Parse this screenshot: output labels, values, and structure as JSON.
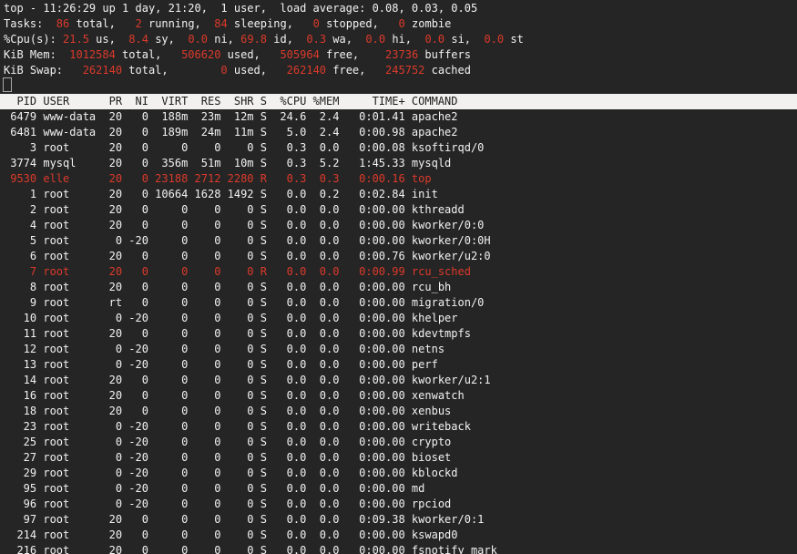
{
  "colors": {
    "background": "#252525",
    "foreground": "#f2f2f2",
    "highlight_red": "#db3a2b",
    "header_bar_background": "#f2f1ef",
    "header_bar_foreground": "#1c1c1c"
  },
  "terminal": {
    "summary_lines": [
      {
        "segments": [
          {
            "text": "top - 11:26:29 up 1 day, 21:20,  1 user,  load average: 0.08, 0.03, 0.05",
            "color": "fg"
          }
        ]
      },
      {
        "segments": [
          {
            "text": "Tasks: ",
            "color": "fg"
          },
          {
            "text": " 86",
            "color": "red"
          },
          {
            "text": " total, ",
            "color": "fg"
          },
          {
            "text": "  2",
            "color": "red"
          },
          {
            "text": " running, ",
            "color": "fg"
          },
          {
            "text": " 84",
            "color": "red"
          },
          {
            "text": " sleeping, ",
            "color": "fg"
          },
          {
            "text": "  0",
            "color": "red"
          },
          {
            "text": " stopped, ",
            "color": "fg"
          },
          {
            "text": "  0",
            "color": "red"
          },
          {
            "text": " zombie",
            "color": "fg"
          }
        ]
      },
      {
        "segments": [
          {
            "text": "%Cpu(s): ",
            "color": "fg"
          },
          {
            "text": "21.5",
            "color": "red"
          },
          {
            "text": " us, ",
            "color": "fg"
          },
          {
            "text": " 8.4",
            "color": "red"
          },
          {
            "text": " sy, ",
            "color": "fg"
          },
          {
            "text": " 0.0",
            "color": "red"
          },
          {
            "text": " ni, ",
            "color": "fg"
          },
          {
            "text": "69.8",
            "color": "red"
          },
          {
            "text": " id, ",
            "color": "fg"
          },
          {
            "text": " 0.3",
            "color": "red"
          },
          {
            "text": " wa, ",
            "color": "fg"
          },
          {
            "text": " 0.0",
            "color": "red"
          },
          {
            "text": " hi, ",
            "color": "fg"
          },
          {
            "text": " 0.0",
            "color": "red"
          },
          {
            "text": " si, ",
            "color": "fg"
          },
          {
            "text": " 0.0",
            "color": "red"
          },
          {
            "text": " st",
            "color": "fg"
          }
        ]
      },
      {
        "segments": [
          {
            "text": "KiB Mem: ",
            "color": "fg"
          },
          {
            "text": " 1012584",
            "color": "red"
          },
          {
            "text": " total, ",
            "color": "fg"
          },
          {
            "text": "  506620",
            "color": "red"
          },
          {
            "text": " used, ",
            "color": "fg"
          },
          {
            "text": "  505964",
            "color": "red"
          },
          {
            "text": " free, ",
            "color": "fg"
          },
          {
            "text": "   23736",
            "color": "red"
          },
          {
            "text": " buffers",
            "color": "fg"
          }
        ]
      },
      {
        "segments": [
          {
            "text": "KiB Swap: ",
            "color": "fg"
          },
          {
            "text": "  262140",
            "color": "red"
          },
          {
            "text": " total, ",
            "color": "fg"
          },
          {
            "text": "       0",
            "color": "red"
          },
          {
            "text": " used, ",
            "color": "fg"
          },
          {
            "text": "  262140",
            "color": "red"
          },
          {
            "text": " free, ",
            "color": "fg"
          },
          {
            "text": "  245752",
            "color": "red"
          },
          {
            "text": " cached",
            "color": "fg"
          }
        ]
      }
    ],
    "cursor": "outline-block",
    "table": {
      "columns": [
        {
          "key": "pid",
          "width": 5,
          "align": "right"
        },
        {
          "key": "user",
          "width": 8,
          "align": "left"
        },
        {
          "key": "pr",
          "width": 3,
          "align": "right"
        },
        {
          "key": "ni",
          "width": 3,
          "align": "right"
        },
        {
          "key": "virt",
          "width": 5,
          "align": "right"
        },
        {
          "key": "res",
          "width": 4,
          "align": "right"
        },
        {
          "key": "shr",
          "width": 4,
          "align": "right"
        },
        {
          "key": "s",
          "width": 1,
          "align": "left"
        },
        {
          "key": "cpu",
          "width": 5,
          "align": "right"
        },
        {
          "key": "mem",
          "width": 4,
          "align": "right"
        },
        {
          "key": "time",
          "width": 9,
          "align": "right"
        },
        {
          "key": "command",
          "width": 0,
          "align": "left"
        }
      ],
      "header": {
        "pid": "PID",
        "user": "USER",
        "pr": "PR",
        "ni": "NI",
        "virt": "VIRT",
        "res": "RES",
        "shr": "SHR",
        "s": "S",
        "cpu": "%CPU",
        "mem": "%MEM",
        "time": "TIME+",
        "command": "COMMAND"
      },
      "rows": [
        {
          "pid": "6479",
          "user": "www-data",
          "pr": "20",
          "ni": "0",
          "virt": "188m",
          "res": "23m",
          "shr": "12m",
          "s": "S",
          "cpu": "24.6",
          "mem": "2.4",
          "time": "0:01.41",
          "command": "apache2",
          "highlight": false
        },
        {
          "pid": "6481",
          "user": "www-data",
          "pr": "20",
          "ni": "0",
          "virt": "189m",
          "res": "24m",
          "shr": "11m",
          "s": "S",
          "cpu": "5.0",
          "mem": "2.4",
          "time": "0:00.98",
          "command": "apache2",
          "highlight": false
        },
        {
          "pid": "3",
          "user": "root",
          "pr": "20",
          "ni": "0",
          "virt": "0",
          "res": "0",
          "shr": "0",
          "s": "S",
          "cpu": "0.3",
          "mem": "0.0",
          "time": "0:00.08",
          "command": "ksoftirqd/0",
          "highlight": false
        },
        {
          "pid": "3774",
          "user": "mysql",
          "pr": "20",
          "ni": "0",
          "virt": "356m",
          "res": "51m",
          "shr": "10m",
          "s": "S",
          "cpu": "0.3",
          "mem": "5.2",
          "time": "1:45.33",
          "command": "mysqld",
          "highlight": false
        },
        {
          "pid": "9530",
          "user": "elle",
          "pr": "20",
          "ni": "0",
          "virt": "23188",
          "res": "2712",
          "shr": "2280",
          "s": "R",
          "cpu": "0.3",
          "mem": "0.3",
          "time": "0:00.16",
          "command": "top",
          "highlight": true
        },
        {
          "pid": "1",
          "user": "root",
          "pr": "20",
          "ni": "0",
          "virt": "10664",
          "res": "1628",
          "shr": "1492",
          "s": "S",
          "cpu": "0.0",
          "mem": "0.2",
          "time": "0:02.84",
          "command": "init",
          "highlight": false
        },
        {
          "pid": "2",
          "user": "root",
          "pr": "20",
          "ni": "0",
          "virt": "0",
          "res": "0",
          "shr": "0",
          "s": "S",
          "cpu": "0.0",
          "mem": "0.0",
          "time": "0:00.00",
          "command": "kthreadd",
          "highlight": false
        },
        {
          "pid": "4",
          "user": "root",
          "pr": "20",
          "ni": "0",
          "virt": "0",
          "res": "0",
          "shr": "0",
          "s": "S",
          "cpu": "0.0",
          "mem": "0.0",
          "time": "0:00.00",
          "command": "kworker/0:0",
          "highlight": false
        },
        {
          "pid": "5",
          "user": "root",
          "pr": "0",
          "ni": "-20",
          "virt": "0",
          "res": "0",
          "shr": "0",
          "s": "S",
          "cpu": "0.0",
          "mem": "0.0",
          "time": "0:00.00",
          "command": "kworker/0:0H",
          "highlight": false
        },
        {
          "pid": "6",
          "user": "root",
          "pr": "20",
          "ni": "0",
          "virt": "0",
          "res": "0",
          "shr": "0",
          "s": "S",
          "cpu": "0.0",
          "mem": "0.0",
          "time": "0:00.76",
          "command": "kworker/u2:0",
          "highlight": false
        },
        {
          "pid": "7",
          "user": "root",
          "pr": "20",
          "ni": "0",
          "virt": "0",
          "res": "0",
          "shr": "0",
          "s": "R",
          "cpu": "0.0",
          "mem": "0.0",
          "time": "0:00.99",
          "command": "rcu_sched",
          "highlight": true
        },
        {
          "pid": "8",
          "user": "root",
          "pr": "20",
          "ni": "0",
          "virt": "0",
          "res": "0",
          "shr": "0",
          "s": "S",
          "cpu": "0.0",
          "mem": "0.0",
          "time": "0:00.00",
          "command": "rcu_bh",
          "highlight": false
        },
        {
          "pid": "9",
          "user": "root",
          "pr": "rt",
          "ni": "0",
          "virt": "0",
          "res": "0",
          "shr": "0",
          "s": "S",
          "cpu": "0.0",
          "mem": "0.0",
          "time": "0:00.00",
          "command": "migration/0",
          "highlight": false
        },
        {
          "pid": "10",
          "user": "root",
          "pr": "0",
          "ni": "-20",
          "virt": "0",
          "res": "0",
          "shr": "0",
          "s": "S",
          "cpu": "0.0",
          "mem": "0.0",
          "time": "0:00.00",
          "command": "khelper",
          "highlight": false
        },
        {
          "pid": "11",
          "user": "root",
          "pr": "20",
          "ni": "0",
          "virt": "0",
          "res": "0",
          "shr": "0",
          "s": "S",
          "cpu": "0.0",
          "mem": "0.0",
          "time": "0:00.00",
          "command": "kdevtmpfs",
          "highlight": false
        },
        {
          "pid": "12",
          "user": "root",
          "pr": "0",
          "ni": "-20",
          "virt": "0",
          "res": "0",
          "shr": "0",
          "s": "S",
          "cpu": "0.0",
          "mem": "0.0",
          "time": "0:00.00",
          "command": "netns",
          "highlight": false
        },
        {
          "pid": "13",
          "user": "root",
          "pr": "0",
          "ni": "-20",
          "virt": "0",
          "res": "0",
          "shr": "0",
          "s": "S",
          "cpu": "0.0",
          "mem": "0.0",
          "time": "0:00.00",
          "command": "perf",
          "highlight": false
        },
        {
          "pid": "14",
          "user": "root",
          "pr": "20",
          "ni": "0",
          "virt": "0",
          "res": "0",
          "shr": "0",
          "s": "S",
          "cpu": "0.0",
          "mem": "0.0",
          "time": "0:00.00",
          "command": "kworker/u2:1",
          "highlight": false
        },
        {
          "pid": "16",
          "user": "root",
          "pr": "20",
          "ni": "0",
          "virt": "0",
          "res": "0",
          "shr": "0",
          "s": "S",
          "cpu": "0.0",
          "mem": "0.0",
          "time": "0:00.00",
          "command": "xenwatch",
          "highlight": false
        },
        {
          "pid": "18",
          "user": "root",
          "pr": "20",
          "ni": "0",
          "virt": "0",
          "res": "0",
          "shr": "0",
          "s": "S",
          "cpu": "0.0",
          "mem": "0.0",
          "time": "0:00.00",
          "command": "xenbus",
          "highlight": false
        },
        {
          "pid": "23",
          "user": "root",
          "pr": "0",
          "ni": "-20",
          "virt": "0",
          "res": "0",
          "shr": "0",
          "s": "S",
          "cpu": "0.0",
          "mem": "0.0",
          "time": "0:00.00",
          "command": "writeback",
          "highlight": false
        },
        {
          "pid": "25",
          "user": "root",
          "pr": "0",
          "ni": "-20",
          "virt": "0",
          "res": "0",
          "shr": "0",
          "s": "S",
          "cpu": "0.0",
          "mem": "0.0",
          "time": "0:00.00",
          "command": "crypto",
          "highlight": false
        },
        {
          "pid": "27",
          "user": "root",
          "pr": "0",
          "ni": "-20",
          "virt": "0",
          "res": "0",
          "shr": "0",
          "s": "S",
          "cpu": "0.0",
          "mem": "0.0",
          "time": "0:00.00",
          "command": "bioset",
          "highlight": false
        },
        {
          "pid": "29",
          "user": "root",
          "pr": "0",
          "ni": "-20",
          "virt": "0",
          "res": "0",
          "shr": "0",
          "s": "S",
          "cpu": "0.0",
          "mem": "0.0",
          "time": "0:00.00",
          "command": "kblockd",
          "highlight": false
        },
        {
          "pid": "95",
          "user": "root",
          "pr": "0",
          "ni": "-20",
          "virt": "0",
          "res": "0",
          "shr": "0",
          "s": "S",
          "cpu": "0.0",
          "mem": "0.0",
          "time": "0:00.00",
          "command": "md",
          "highlight": false
        },
        {
          "pid": "96",
          "user": "root",
          "pr": "0",
          "ni": "-20",
          "virt": "0",
          "res": "0",
          "shr": "0",
          "s": "S",
          "cpu": "0.0",
          "mem": "0.0",
          "time": "0:00.00",
          "command": "rpciod",
          "highlight": false
        },
        {
          "pid": "97",
          "user": "root",
          "pr": "20",
          "ni": "0",
          "virt": "0",
          "res": "0",
          "shr": "0",
          "s": "S",
          "cpu": "0.0",
          "mem": "0.0",
          "time": "0:09.38",
          "command": "kworker/0:1",
          "highlight": false
        },
        {
          "pid": "214",
          "user": "root",
          "pr": "20",
          "ni": "0",
          "virt": "0",
          "res": "0",
          "shr": "0",
          "s": "S",
          "cpu": "0.0",
          "mem": "0.0",
          "time": "0:00.00",
          "command": "kswapd0",
          "highlight": false
        },
        {
          "pid": "216",
          "user": "root",
          "pr": "20",
          "ni": "0",
          "virt": "0",
          "res": "0",
          "shr": "0",
          "s": "S",
          "cpu": "0.0",
          "mem": "0.0",
          "time": "0:00.00",
          "command": "fsnotify_mark",
          "highlight": false
        }
      ]
    }
  }
}
